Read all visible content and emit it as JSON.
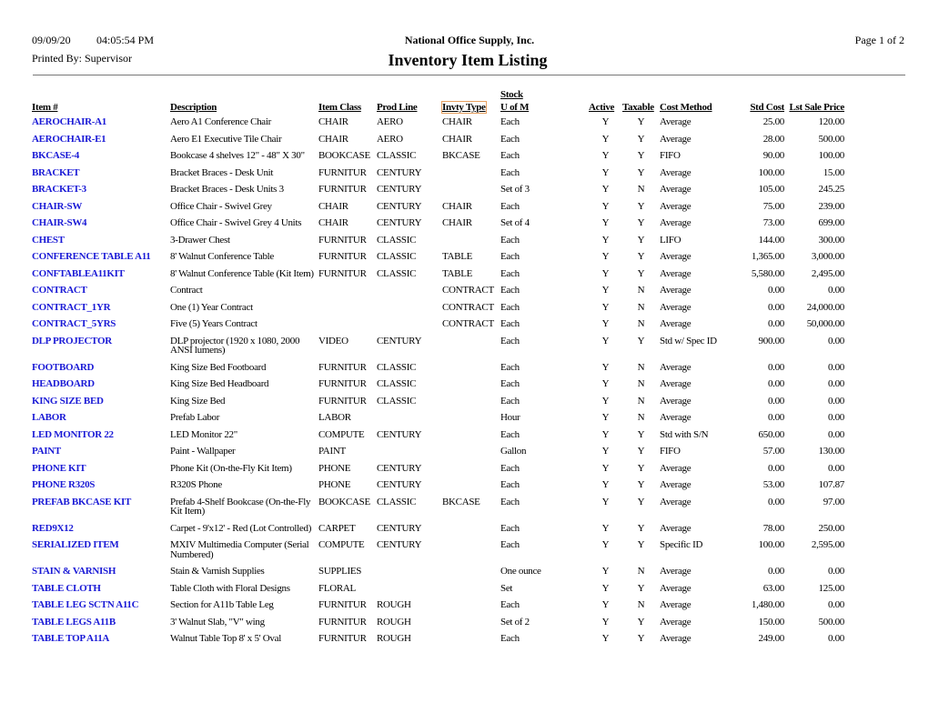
{
  "header": {
    "date": "09/09/20",
    "time": "04:05:54 PM",
    "printed_by": "Printed By: Supervisor",
    "company": "National Office Supply, Inc.",
    "title": "Inventory Item Listing",
    "page": "Page 1 of 2"
  },
  "columns": {
    "item": "Item #",
    "description": "Description",
    "item_class": "Item Class",
    "prod_line": "Prod Line",
    "invty_type": "Invty Type",
    "stock": "Stock",
    "uom": "U of M",
    "active": "Active",
    "taxable": "Taxable",
    "cost_method": "Cost Method",
    "std_cost": "Std Cost",
    "lst_sale_price": "Lst Sale Price"
  },
  "rows": [
    [
      "AEROCHAIR-A1",
      "Aero A1 Conference Chair",
      "CHAIR",
      "AERO",
      "CHAIR",
      "Each",
      "Y",
      "Y",
      "Average",
      "25.00",
      "120.00"
    ],
    [
      "AEROCHAIR-E1",
      "Aero E1 Executive Tile Chair",
      "CHAIR",
      "AERO",
      "CHAIR",
      "Each",
      "Y",
      "Y",
      "Average",
      "28.00",
      "500.00"
    ],
    [
      "BKCASE-4",
      "Bookcase 4 shelves 12\" - 48\" X 30\"",
      "BOOKCASE",
      "CLASSIC",
      "BKCASE",
      "Each",
      "Y",
      "Y",
      "FIFO",
      "90.00",
      "100.00"
    ],
    [
      "BRACKET",
      "Bracket Braces - Desk Unit",
      "FURNITUR",
      "CENTURY",
      "",
      "Each",
      "Y",
      "Y",
      "Average",
      "100.00",
      "15.00"
    ],
    [
      "BRACKET-3",
      "Bracket Braces - Desk Units 3",
      "FURNITUR",
      "CENTURY",
      "",
      "Set of 3",
      "Y",
      "N",
      "Average",
      "105.00",
      "245.25"
    ],
    [
      "CHAIR-SW",
      "Office Chair - Swivel Grey",
      "CHAIR",
      "CENTURY",
      "CHAIR",
      "Each",
      "Y",
      "Y",
      "Average",
      "75.00",
      "239.00"
    ],
    [
      "CHAIR-SW4",
      "Office Chair - Swivel Grey 4 Units",
      "CHAIR",
      "CENTURY",
      "CHAIR",
      "Set of 4",
      "Y",
      "Y",
      "Average",
      "73.00",
      "699.00"
    ],
    [
      "CHEST",
      "3-Drawer Chest",
      "FURNITUR",
      "CLASSIC",
      "",
      "Each",
      "Y",
      "Y",
      "LIFO",
      "144.00",
      "300.00"
    ],
    [
      "CONFERENCE TABLE A11",
      "8' Walnut Conference Table",
      "FURNITUR",
      "CLASSIC",
      "TABLE",
      "Each",
      "Y",
      "Y",
      "Average",
      "1,365.00",
      "3,000.00"
    ],
    [
      "CONFTABLEA11KIT",
      "8' Walnut Conference Table (Kit Item)",
      "FURNITUR",
      "CLASSIC",
      "TABLE",
      "Each",
      "Y",
      "Y",
      "Average",
      "5,580.00",
      "2,495.00"
    ],
    [
      "CONTRACT",
      "Contract",
      "",
      "",
      "CONTRACT",
      "Each",
      "Y",
      "N",
      "Average",
      "0.00",
      "0.00"
    ],
    [
      "CONTRACT_1YR",
      "One (1) Year Contract",
      "",
      "",
      "CONTRACT",
      "Each",
      "Y",
      "N",
      "Average",
      "0.00",
      "24,000.00"
    ],
    [
      "CONTRACT_5YRS",
      "Five (5) Years Contract",
      "",
      "",
      "CONTRACT",
      "Each",
      "Y",
      "N",
      "Average",
      "0.00",
      "50,000.00"
    ],
    [
      "DLP PROJECTOR",
      "DLP projector (1920 x 1080, 2000 ANSI lumens)",
      "VIDEO",
      "CENTURY",
      "",
      "Each",
      "Y",
      "Y",
      "Std w/ Spec ID",
      "900.00",
      "0.00"
    ],
    [
      "FOOTBOARD",
      "King Size Bed Footboard",
      "FURNITUR",
      "CLASSIC",
      "",
      "Each",
      "Y",
      "N",
      "Average",
      "0.00",
      "0.00"
    ],
    [
      "HEADBOARD",
      "King Size Bed Headboard",
      "FURNITUR",
      "CLASSIC",
      "",
      "Each",
      "Y",
      "N",
      "Average",
      "0.00",
      "0.00"
    ],
    [
      "KING SIZE BED",
      "King Size Bed",
      "FURNITUR",
      "CLASSIC",
      "",
      "Each",
      "Y",
      "N",
      "Average",
      "0.00",
      "0.00"
    ],
    [
      "LABOR",
      "Prefab Labor",
      "LABOR",
      "",
      "",
      "Hour",
      "Y",
      "N",
      "Average",
      "0.00",
      "0.00"
    ],
    [
      "LED MONITOR 22",
      "LED Monitor 22\"",
      "COMPUTE",
      "CENTURY",
      "",
      "Each",
      "Y",
      "Y",
      "Std with S/N",
      "650.00",
      "0.00"
    ],
    [
      "PAINT",
      "Paint - Wallpaper",
      "PAINT",
      "",
      "",
      "Gallon",
      "Y",
      "Y",
      "FIFO",
      "57.00",
      "130.00"
    ],
    [
      "PHONE KIT",
      "Phone Kit (On-the-Fly Kit Item)",
      "PHONE",
      "CENTURY",
      "",
      "Each",
      "Y",
      "Y",
      "Average",
      "0.00",
      "0.00"
    ],
    [
      "PHONE R320S",
      "R320S Phone",
      "PHONE",
      "CENTURY",
      "",
      "Each",
      "Y",
      "Y",
      "Average",
      "53.00",
      "107.87"
    ],
    [
      "PREFAB BKCASE KIT",
      "Prefab 4-Shelf Bookcase (On-the-Fly Kit Item)",
      "BOOKCASE",
      "CLASSIC",
      "BKCASE",
      "Each",
      "Y",
      "Y",
      "Average",
      "0.00",
      "97.00"
    ],
    [
      "RED9X12",
      "Carpet - 9'x12' - Red (Lot Controlled)",
      "CARPET",
      "CENTURY",
      "",
      "Each",
      "Y",
      "Y",
      "Average",
      "78.00",
      "250.00"
    ],
    [
      "SERIALIZED ITEM",
      "MXIV Multimedia Computer (Serial Numbered)",
      "COMPUTE",
      "CENTURY",
      "",
      "Each",
      "Y",
      "Y",
      "Specific ID",
      "100.00",
      "2,595.00"
    ],
    [
      "STAIN & VARNISH",
      "Stain & Varnish Supplies",
      "SUPPLIES",
      "",
      "",
      "One ounce",
      "Y",
      "N",
      "Average",
      "0.00",
      "0.00"
    ],
    [
      "TABLE CLOTH",
      "Table Cloth with Floral Designs",
      "FLORAL",
      "",
      "",
      "Set",
      "Y",
      "Y",
      "Average",
      "63.00",
      "125.00"
    ],
    [
      "TABLE LEG SCTN A11C",
      "Section for A11b Table Leg",
      "FURNITUR",
      "ROUGH",
      "",
      "Each",
      "Y",
      "N",
      "Average",
      "1,480.00",
      "0.00"
    ],
    [
      "TABLE LEGS A11B",
      "3' Walnut Slab, \"V\" wing",
      "FURNITUR",
      "ROUGH",
      "",
      "Set of 2",
      "Y",
      "Y",
      "Average",
      "150.00",
      "500.00"
    ],
    [
      "TABLE TOP A11A",
      "Walnut Table Top 8' x 5' Oval",
      "FURNITUR",
      "ROUGH",
      "",
      "Each",
      "Y",
      "Y",
      "Average",
      "249.00",
      "0.00"
    ]
  ]
}
